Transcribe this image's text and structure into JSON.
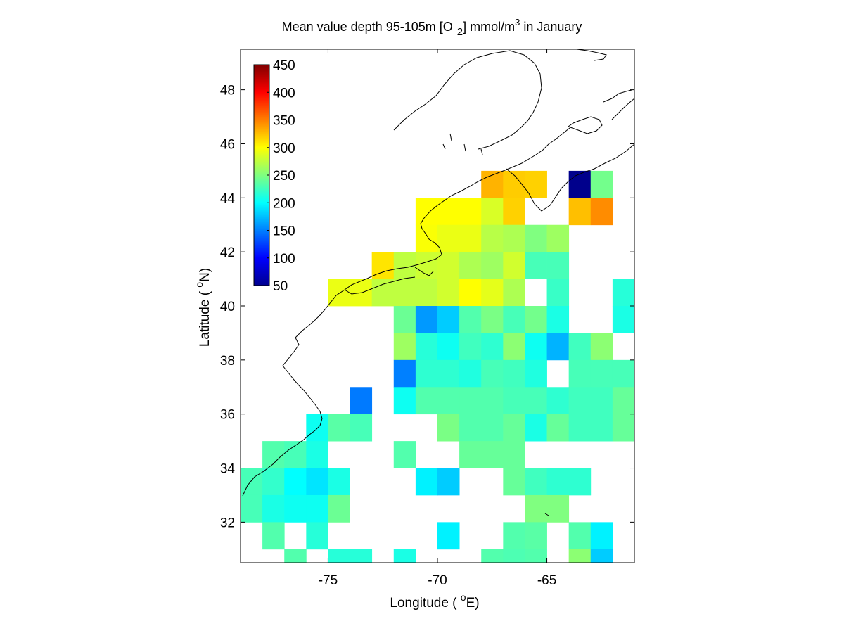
{
  "chart_data": {
    "type": "heatmap",
    "title": {
      "prefix": "Mean value depth 95-105m [O",
      "subscript": "2",
      "middle": "] mmol/m",
      "superscript": "3",
      "suffix": " in January"
    },
    "xlabel": {
      "prefix": "Longitude ( ",
      "superscript": "o",
      "suffix": "E)"
    },
    "ylabel": {
      "prefix": "Latitude ( ",
      "superscript": "o",
      "suffix": "N)"
    },
    "xlim": [
      -79,
      -61
    ],
    "ylim": [
      30.5,
      49.5
    ],
    "xticks": [
      -75,
      -70,
      -65
    ],
    "yticks": [
      32,
      34,
      36,
      38,
      40,
      42,
      44,
      46,
      48
    ],
    "cell_size_deg": 1,
    "grid": false,
    "colormap": "jet",
    "colorbar": {
      "range": [
        50,
        450
      ],
      "ticks": [
        50,
        100,
        150,
        200,
        250,
        300,
        350,
        400,
        450
      ],
      "placement": "top-left inside axes"
    },
    "cells": [
      [
        -68,
        44,
        330
      ],
      [
        -67,
        44,
        320
      ],
      [
        -66,
        44,
        318
      ],
      [
        -64,
        44,
        55
      ],
      [
        -63,
        44,
        245
      ],
      [
        -71,
        43,
        300
      ],
      [
        -70,
        43,
        300
      ],
      [
        -69,
        43,
        300
      ],
      [
        -68,
        43,
        285
      ],
      [
        -67,
        43,
        318
      ],
      [
        -64,
        43,
        325
      ],
      [
        -63,
        43,
        345
      ],
      [
        -71,
        42,
        298
      ],
      [
        -70,
        42,
        292
      ],
      [
        -69,
        42,
        292
      ],
      [
        -68,
        42,
        272
      ],
      [
        -67,
        42,
        268
      ],
      [
        -66,
        42,
        250
      ],
      [
        -65,
        42,
        262
      ],
      [
        -73,
        41,
        310
      ],
      [
        -72,
        41,
        275
      ],
      [
        -71,
        41,
        280
      ],
      [
        -70,
        41,
        282
      ],
      [
        -69,
        41,
        268
      ],
      [
        -68,
        41,
        262
      ],
      [
        -67,
        41,
        282
      ],
      [
        -66,
        41,
        228
      ],
      [
        -65,
        41,
        228
      ],
      [
        -75,
        40,
        292
      ],
      [
        -74,
        40,
        292
      ],
      [
        -73,
        40,
        275
      ],
      [
        -72,
        40,
        275
      ],
      [
        -71,
        40,
        275
      ],
      [
        -70,
        40,
        282
      ],
      [
        -69,
        40,
        300
      ],
      [
        -68,
        40,
        290
      ],
      [
        -67,
        40,
        268
      ],
      [
        -65,
        40,
        222
      ],
      [
        -62,
        40,
        215
      ],
      [
        -61,
        40,
        232
      ],
      [
        -72,
        39,
        242
      ],
      [
        -71,
        39,
        160
      ],
      [
        -70,
        39,
        180
      ],
      [
        -69,
        39,
        232
      ],
      [
        -68,
        39,
        248
      ],
      [
        -67,
        39,
        228
      ],
      [
        -66,
        39,
        245
      ],
      [
        -65,
        39,
        210
      ],
      [
        -62,
        39,
        210
      ],
      [
        -61,
        39,
        210
      ],
      [
        -60,
        39,
        222
      ],
      [
        -72,
        38,
        262
      ],
      [
        -71,
        38,
        215
      ],
      [
        -70,
        38,
        205
      ],
      [
        -69,
        38,
        225
      ],
      [
        -68,
        38,
        218
      ],
      [
        -67,
        38,
        255
      ],
      [
        -66,
        38,
        205
      ],
      [
        -65,
        38,
        170
      ],
      [
        -64,
        38,
        225
      ],
      [
        -63,
        38,
        255
      ],
      [
        -61,
        38,
        235
      ],
      [
        -60,
        38,
        230
      ],
      [
        -72,
        37,
        150
      ],
      [
        -71,
        37,
        218
      ],
      [
        -70,
        37,
        218
      ],
      [
        -69,
        37,
        212
      ],
      [
        -68,
        37,
        228
      ],
      [
        -67,
        37,
        225
      ],
      [
        -66,
        37,
        212
      ],
      [
        -64,
        37,
        228
      ],
      [
        -63,
        37,
        228
      ],
      [
        -62,
        37,
        228
      ],
      [
        -61,
        37,
        232
      ],
      [
        -74,
        36,
        148
      ],
      [
        -72,
        36,
        205
      ],
      [
        -71,
        36,
        232
      ],
      [
        -70,
        36,
        232
      ],
      [
        -69,
        36,
        232
      ],
      [
        -68,
        36,
        232
      ],
      [
        -67,
        36,
        228
      ],
      [
        -66,
        36,
        228
      ],
      [
        -65,
        36,
        218
      ],
      [
        -64,
        36,
        225
      ],
      [
        -63,
        36,
        225
      ],
      [
        -62,
        36,
        240
      ],
      [
        -60,
        36,
        242
      ],
      [
        -76,
        35,
        205
      ],
      [
        -75,
        35,
        235
      ],
      [
        -74,
        35,
        228
      ],
      [
        -70,
        35,
        248
      ],
      [
        -69,
        35,
        232
      ],
      [
        -68,
        35,
        232
      ],
      [
        -67,
        35,
        240
      ],
      [
        -66,
        35,
        210
      ],
      [
        -65,
        35,
        240
      ],
      [
        -64,
        35,
        225
      ],
      [
        -63,
        35,
        225
      ],
      [
        -62,
        35,
        240
      ],
      [
        -60,
        35,
        242
      ],
      [
        -78,
        34,
        232
      ],
      [
        -77,
        34,
        228
      ],
      [
        -76,
        34,
        210
      ],
      [
        -72,
        34,
        232
      ],
      [
        -69,
        34,
        240
      ],
      [
        -68,
        34,
        240
      ],
      [
        -67,
        34,
        240
      ],
      [
        -79,
        33,
        228
      ],
      [
        -78,
        33,
        220
      ],
      [
        -77,
        33,
        200
      ],
      [
        -76,
        33,
        190
      ],
      [
        -75,
        33,
        210
      ],
      [
        -71,
        33,
        195
      ],
      [
        -70,
        33,
        180
      ],
      [
        -67,
        33,
        240
      ],
      [
        -66,
        33,
        225
      ],
      [
        -65,
        33,
        218
      ],
      [
        -64,
        33,
        218
      ],
      [
        -79,
        32,
        228
      ],
      [
        -78,
        32,
        210
      ],
      [
        -77,
        32,
        205
      ],
      [
        -76,
        32,
        205
      ],
      [
        -75,
        32,
        242
      ],
      [
        -66,
        32,
        250
      ],
      [
        -65,
        32,
        250
      ],
      [
        -60,
        32,
        215
      ],
      [
        -78,
        31,
        232
      ],
      [
        -76,
        31,
        215
      ],
      [
        -70,
        31,
        195
      ],
      [
        -67,
        31,
        232
      ],
      [
        -66,
        31,
        235
      ],
      [
        -64,
        31,
        232
      ],
      [
        -63,
        31,
        195
      ],
      [
        -77,
        30,
        232
      ],
      [
        -75,
        30,
        215
      ],
      [
        -74,
        30,
        215
      ],
      [
        -72,
        30,
        210
      ],
      [
        -68,
        30,
        232
      ],
      [
        -67,
        30,
        230
      ],
      [
        -66,
        30,
        232
      ],
      [
        -64,
        30,
        255
      ],
      [
        -63,
        30,
        180
      ],
      [
        -61,
        30,
        215
      ]
    ]
  }
}
